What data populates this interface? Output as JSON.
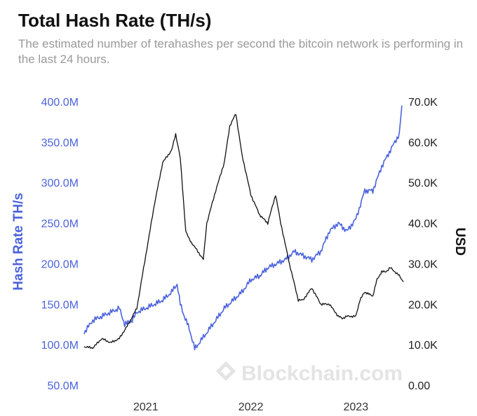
{
  "colors": {
    "hash": "#4b63dc",
    "price": "#111111",
    "tick_right": "#222222",
    "watermark": "#e4e4e4"
  },
  "watermark": {
    "text": "Blockchain.com",
    "icon": "blockchain-logo-icon"
  },
  "chart_data": {
    "type": "line",
    "title": "Total Hash Rate (TH/s)",
    "subtitle": "The estimated number of terahashes per second the bitcoin network is performing in the last 24 hours.",
    "x_ticks": [
      "2021",
      "2022",
      "2023"
    ],
    "x_tick_dates": [
      "2021-01-01",
      "2022-01-01",
      "2023-01-01"
    ],
    "xlim": [
      "2020-06-01",
      "2023-06-15"
    ],
    "y_left": {
      "label": "Hash Rate TH/s",
      "ylim": [
        50,
        400
      ],
      "unit": "M",
      "ticks": [
        "400.0M",
        "350.0M",
        "300.0M",
        "250.0M",
        "200.0M",
        "150.0M",
        "100.0M",
        "50.0M"
      ]
    },
    "y_right": {
      "label": "USD",
      "ylim": [
        0,
        70
      ],
      "unit": "K",
      "ticks": [
        "70.0K",
        "60.0K",
        "50.0K",
        "40.0K",
        "30.0K",
        "20.0K",
        "10.0K",
        "0.00"
      ]
    },
    "series": [
      {
        "axis": "left",
        "color": "#4b63dc",
        "x": [
          "2020-06-01",
          "2020-07-01",
          "2020-08-01",
          "2020-09-01",
          "2020-10-01",
          "2020-10-20",
          "2020-11-15",
          "2020-12-01",
          "2021-01-01",
          "2021-02-01",
          "2021-03-01",
          "2021-04-01",
          "2021-04-20",
          "2021-05-01",
          "2021-05-15",
          "2021-06-01",
          "2021-06-20",
          "2021-07-01",
          "2021-08-01",
          "2021-09-01",
          "2021-10-01",
          "2021-11-01",
          "2021-12-01",
          "2022-01-01",
          "2022-02-01",
          "2022-03-01",
          "2022-04-01",
          "2022-05-01",
          "2022-06-01",
          "2022-07-01",
          "2022-08-01",
          "2022-09-01",
          "2022-10-01",
          "2022-11-01",
          "2022-12-01",
          "2023-01-01",
          "2023-02-01",
          "2023-03-01",
          "2023-04-01",
          "2023-05-01",
          "2023-06-01",
          "2023-06-10"
        ],
        "y": [
          115,
          130,
          135,
          140,
          145,
          125,
          130,
          140,
          145,
          150,
          155,
          165,
          175,
          150,
          135,
          120,
          95,
          100,
          115,
          130,
          145,
          155,
          165,
          180,
          185,
          195,
          200,
          205,
          215,
          210,
          205,
          215,
          240,
          250,
          240,
          255,
          290,
          290,
          320,
          340,
          360,
          395
        ]
      },
      {
        "axis": "right",
        "color": "#111111",
        "x": [
          "2020-06-01",
          "2020-07-01",
          "2020-08-01",
          "2020-09-01",
          "2020-10-01",
          "2020-11-01",
          "2020-12-01",
          "2021-01-01",
          "2021-02-01",
          "2021-03-01",
          "2021-04-01",
          "2021-04-15",
          "2021-05-01",
          "2021-05-20",
          "2021-06-01",
          "2021-07-01",
          "2021-07-20",
          "2021-08-01",
          "2021-09-01",
          "2021-10-01",
          "2021-10-20",
          "2021-11-10",
          "2021-12-01",
          "2022-01-01",
          "2022-02-01",
          "2022-03-01",
          "2022-03-28",
          "2022-04-15",
          "2022-05-15",
          "2022-06-15",
          "2022-07-01",
          "2022-08-01",
          "2022-09-01",
          "2022-10-01",
          "2022-11-01",
          "2022-11-15",
          "2022-12-01",
          "2023-01-01",
          "2023-01-15",
          "2023-02-01",
          "2023-03-01",
          "2023-03-15",
          "2023-04-01",
          "2023-04-15",
          "2023-05-01",
          "2023-06-01",
          "2023-06-15"
        ],
        "y": [
          9.5,
          9.2,
          11.5,
          10.5,
          11.5,
          15,
          19,
          32,
          45,
          55,
          58,
          62,
          56,
          38,
          36,
          33,
          31,
          40,
          48,
          55,
          64,
          67,
          57,
          47,
          42,
          40,
          47,
          40,
          30,
          21,
          21,
          24,
          20,
          20,
          17,
          16.5,
          17,
          17,
          21,
          23,
          22,
          26,
          28,
          28,
          29,
          27,
          25.5
        ]
      }
    ]
  }
}
